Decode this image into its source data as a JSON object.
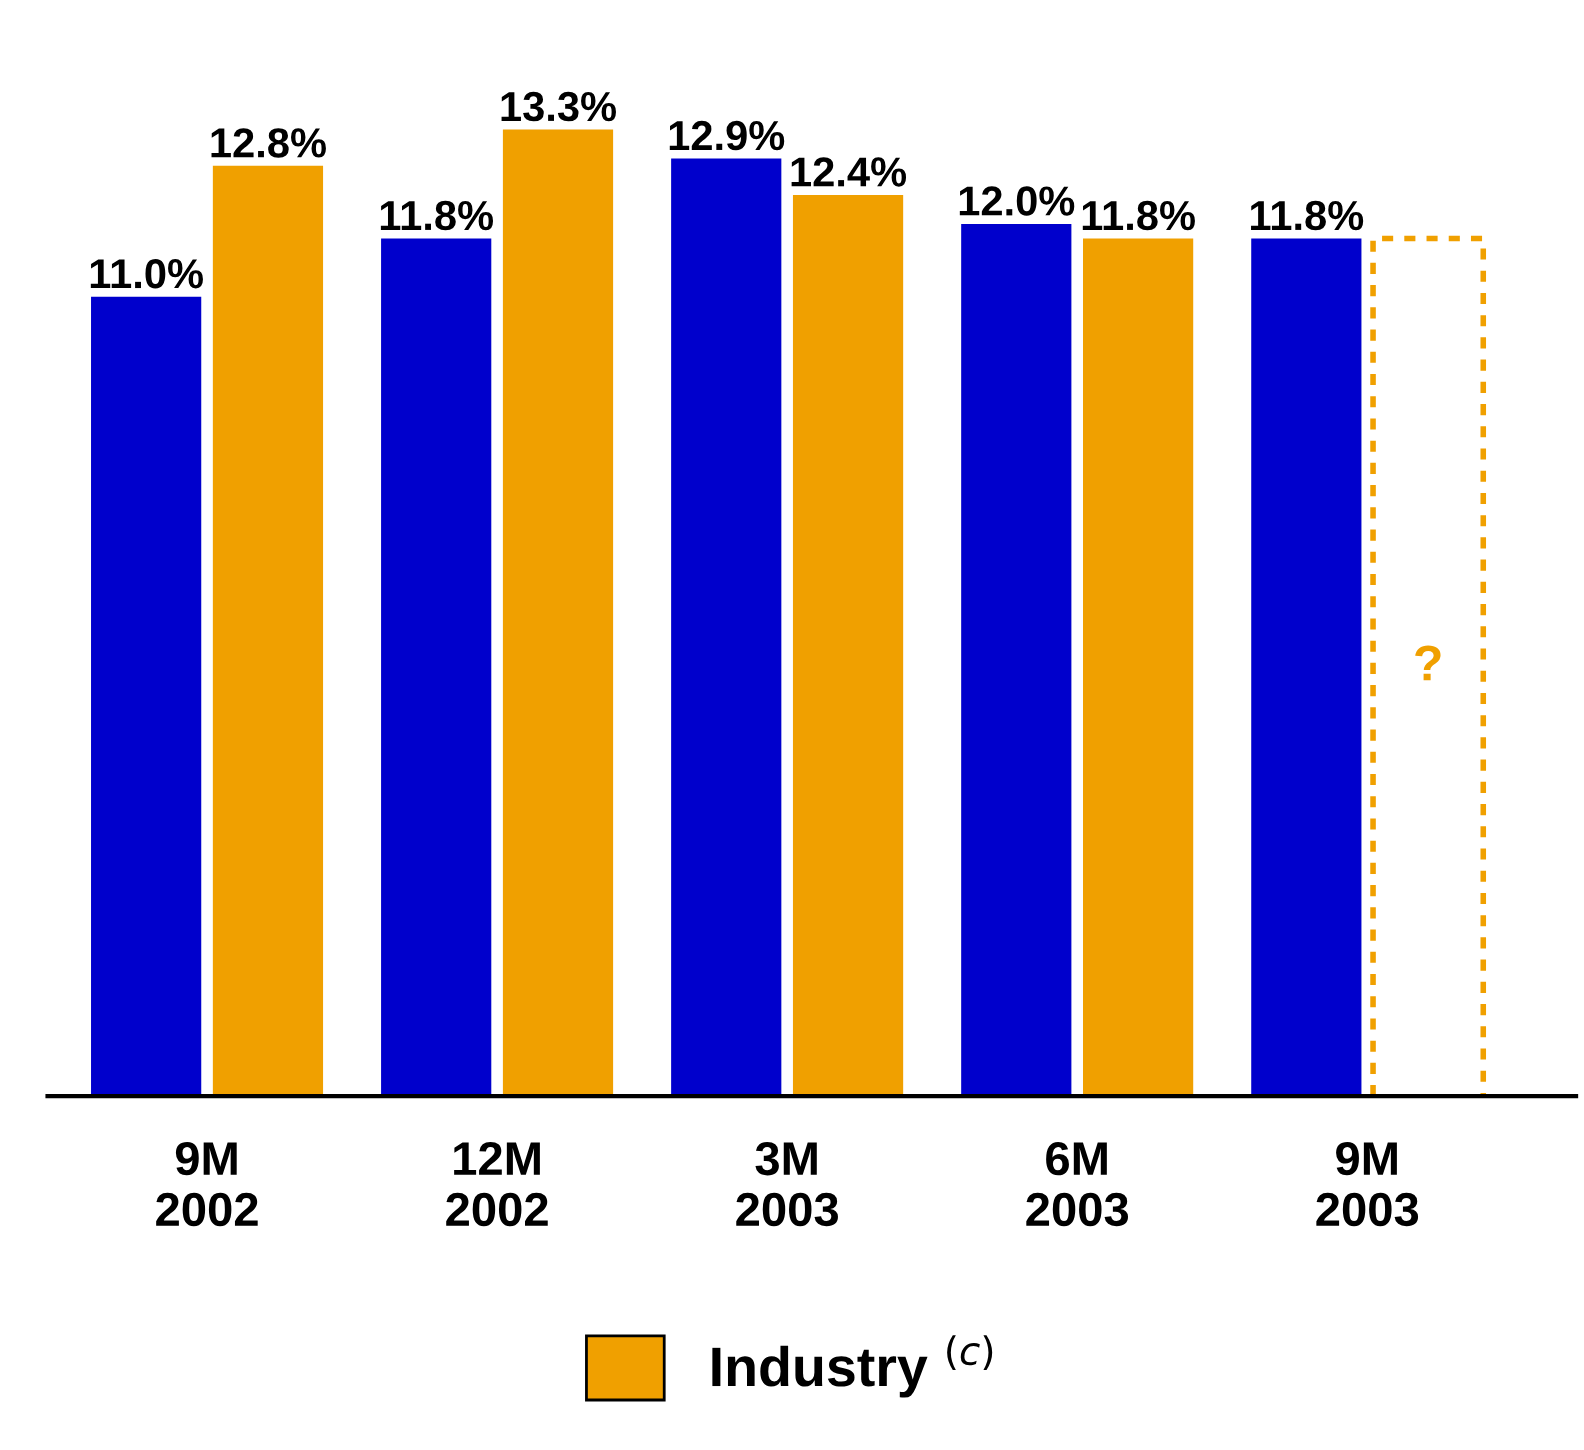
{
  "chart_data": {
    "type": "bar",
    "categories": [
      "9M\n2002",
      "12M\n2002",
      "3M\n2003",
      "6M\n2003",
      "9M\n2003"
    ],
    "series": [
      {
        "color": "#0000cc",
        "values": [
          11.0,
          11.8,
          12.9,
          12.0,
          11.8
        ],
        "value_labels": [
          "11.0%",
          "11.8%",
          "12.9%",
          "12.0%",
          "11.8%"
        ]
      },
      {
        "name": "Industry $^{(c)}$",
        "color": "#f0a000",
        "values": [
          12.8,
          13.3,
          12.4,
          11.8,
          null
        ],
        "value_labels": [
          "12.8%",
          "13.3%",
          "12.4%",
          "11.8%",
          null
        ]
      }
    ],
    "annotations": [
      {
        "text": "?",
        "x": "9M\n2003"
      }
    ],
    "legend": "bottom",
    "grid": false
  }
}
